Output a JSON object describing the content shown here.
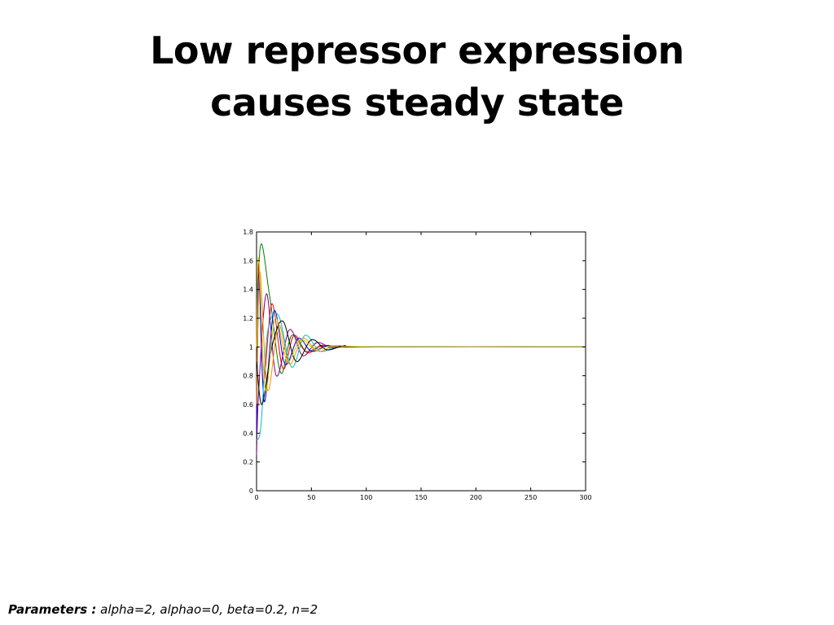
{
  "slide": {
    "title_lines": [
      "Low repressor expression",
      "causes steady state"
    ],
    "parameters_label": "Parameters :",
    "parameters_text": " alpha=2, alphao=0, beta=0.2, n=2"
  },
  "chart_data": {
    "type": "line",
    "title": "",
    "xlabel": "",
    "ylabel": "",
    "xlim": [
      0,
      300
    ],
    "ylim": [
      0,
      1.8
    ],
    "xticks": [
      0,
      50,
      100,
      150,
      200,
      250,
      300
    ],
    "yticks": [
      0,
      0.2,
      0.4,
      0.6,
      0.8,
      1,
      1.2,
      1.4,
      1.6,
      1.8
    ],
    "grid": false,
    "legend": "none",
    "series": [
      {
        "color": "#008000",
        "x": [
          0,
          3,
          12,
          22,
          32,
          45,
          60,
          80,
          100,
          300
        ],
        "y": [
          0.3,
          1.67,
          1.35,
          0.82,
          1.08,
          0.97,
          1.01,
          1.0,
          1.0,
          1.0
        ]
      },
      {
        "color": "#ff0000",
        "x": [
          0,
          2,
          6,
          14,
          24,
          34,
          46,
          60,
          80,
          300
        ],
        "y": [
          0.5,
          1.58,
          0.75,
          1.3,
          0.85,
          1.08,
          0.96,
          1.01,
          1.0,
          1.0
        ]
      },
      {
        "color": "#0000ff",
        "x": [
          0,
          2,
          7,
          16,
          26,
          38,
          50,
          65,
          85,
          300
        ],
        "y": [
          0.4,
          1.5,
          0.62,
          1.25,
          0.88,
          1.06,
          0.97,
          1.01,
          1.0,
          1.0
        ]
      },
      {
        "color": "#800080",
        "x": [
          0,
          2,
          9,
          18,
          30,
          42,
          55,
          70,
          90,
          300
        ],
        "y": [
          0.25,
          0.7,
          1.37,
          0.8,
          1.12,
          0.94,
          1.03,
          0.99,
          1.0,
          1.0
        ]
      },
      {
        "color": "#00bfbf",
        "x": [
          0,
          4,
          10,
          20,
          32,
          44,
          58,
          75,
          95,
          300
        ],
        "y": [
          0.35,
          0.45,
          1.1,
          1.22,
          0.86,
          1.08,
          0.97,
          1.01,
          1.0,
          1.0
        ]
      },
      {
        "color": "#ff8c00",
        "x": [
          0,
          3,
          10,
          20,
          30,
          42,
          56,
          72,
          92,
          300
        ],
        "y": [
          0.6,
          1.52,
          0.7,
          1.15,
          0.88,
          1.06,
          0.97,
          1.01,
          1.0,
          1.0
        ]
      },
      {
        "color": "#000000",
        "x": [
          0,
          5,
          14,
          24,
          36,
          50,
          64,
          80,
          100,
          300
        ],
        "y": [
          0.9,
          0.6,
          1.0,
          1.18,
          0.9,
          1.05,
          0.98,
          1.01,
          1.0,
          1.0
        ]
      },
      {
        "color": "#c8c800",
        "x": [
          0,
          2,
          8,
          17,
          28,
          40,
          54,
          70,
          110,
          300
        ],
        "y": [
          1.0,
          1.62,
          0.7,
          1.2,
          0.9,
          1.05,
          0.98,
          1.01,
          1.0,
          1.0
        ]
      }
    ]
  }
}
